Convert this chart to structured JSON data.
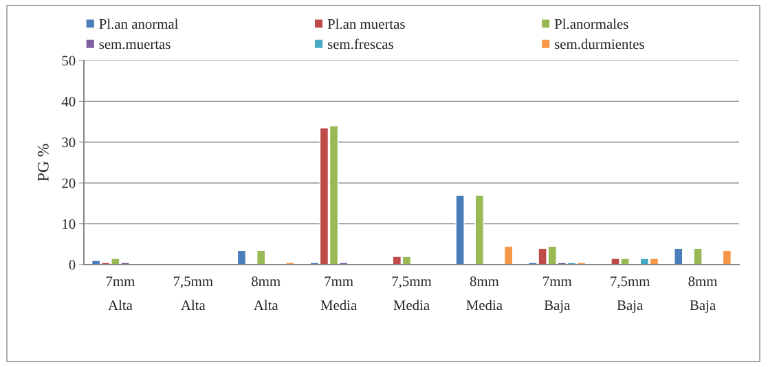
{
  "chart_data": {
    "type": "bar",
    "ylabel": "PG %",
    "categories": [
      "7mm\nAlta",
      "7,5mm\nAlta",
      "8mm\nAlta",
      "7mm\nMedia",
      "7,5mm\nMedia",
      "8mm\nMedia",
      "7mm\nBaja",
      "7,5mm\nBaja",
      "8mm\nBaja"
    ],
    "series": [
      {
        "name": "Pl.an anormal",
        "color": "#4a7ebb",
        "values": [
          1,
          null,
          3.5,
          0.5,
          null,
          17,
          0.5,
          null,
          4
        ]
      },
      {
        "name": "Pl.an muertas",
        "color": "#be4b48",
        "values": [
          0.5,
          null,
          null,
          33.5,
          2,
          null,
          4,
          1.5,
          null
        ]
      },
      {
        "name": "Pl.anormales",
        "color": "#98b954",
        "values": [
          1.5,
          null,
          3.5,
          34,
          2,
          17,
          4.5,
          1.5,
          4
        ]
      },
      {
        "name": "sem.muertas",
        "color": "#7d60a0",
        "values": [
          0.5,
          null,
          null,
          0.5,
          null,
          null,
          0.5,
          null,
          null
        ]
      },
      {
        "name": "sem.frescas",
        "color": "#46aac5",
        "values": [
          null,
          null,
          null,
          null,
          null,
          null,
          0.5,
          1.5,
          null
        ]
      },
      {
        "name": "sem.durmientes",
        "color": "#f79646",
        "values": [
          null,
          null,
          0.5,
          null,
          null,
          4.5,
          0.5,
          1.5,
          3.5
        ]
      }
    ],
    "ylim": [
      0,
      50
    ],
    "yticks": [
      0,
      10,
      20,
      30,
      40,
      50
    ],
    "grid": "y",
    "legend": "top"
  }
}
